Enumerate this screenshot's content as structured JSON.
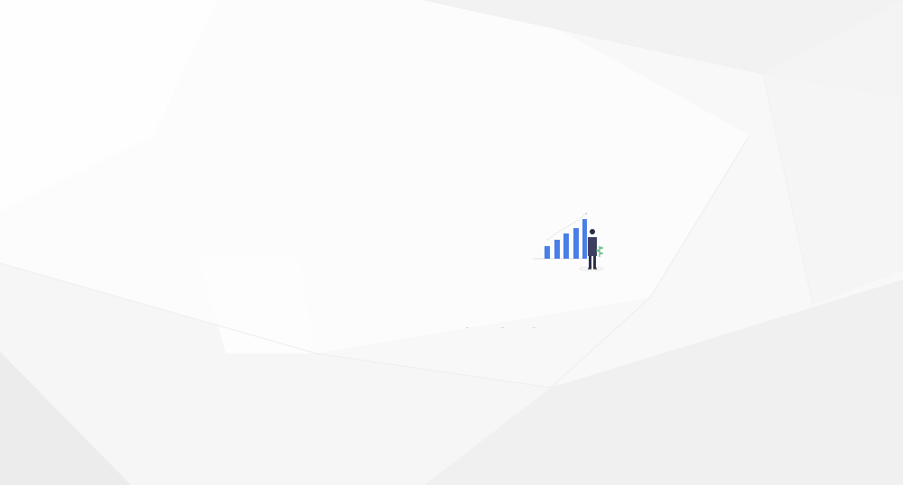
{
  "screen": {
    "state": "loading",
    "visible_text": []
  },
  "illustration": {
    "icon": "growth-chart-with-person-icon",
    "bar_color": "#4a7ee8",
    "person_color": "#3d3f61",
    "plant_color": "#6ac48b"
  },
  "loading_indicator": {
    "dots": 3,
    "dot_color": "#d7d7d7"
  },
  "colors": {
    "background": "#f8f8f8",
    "facet_light": "#ffffff",
    "facet_shadow": "#eeeeee"
  }
}
